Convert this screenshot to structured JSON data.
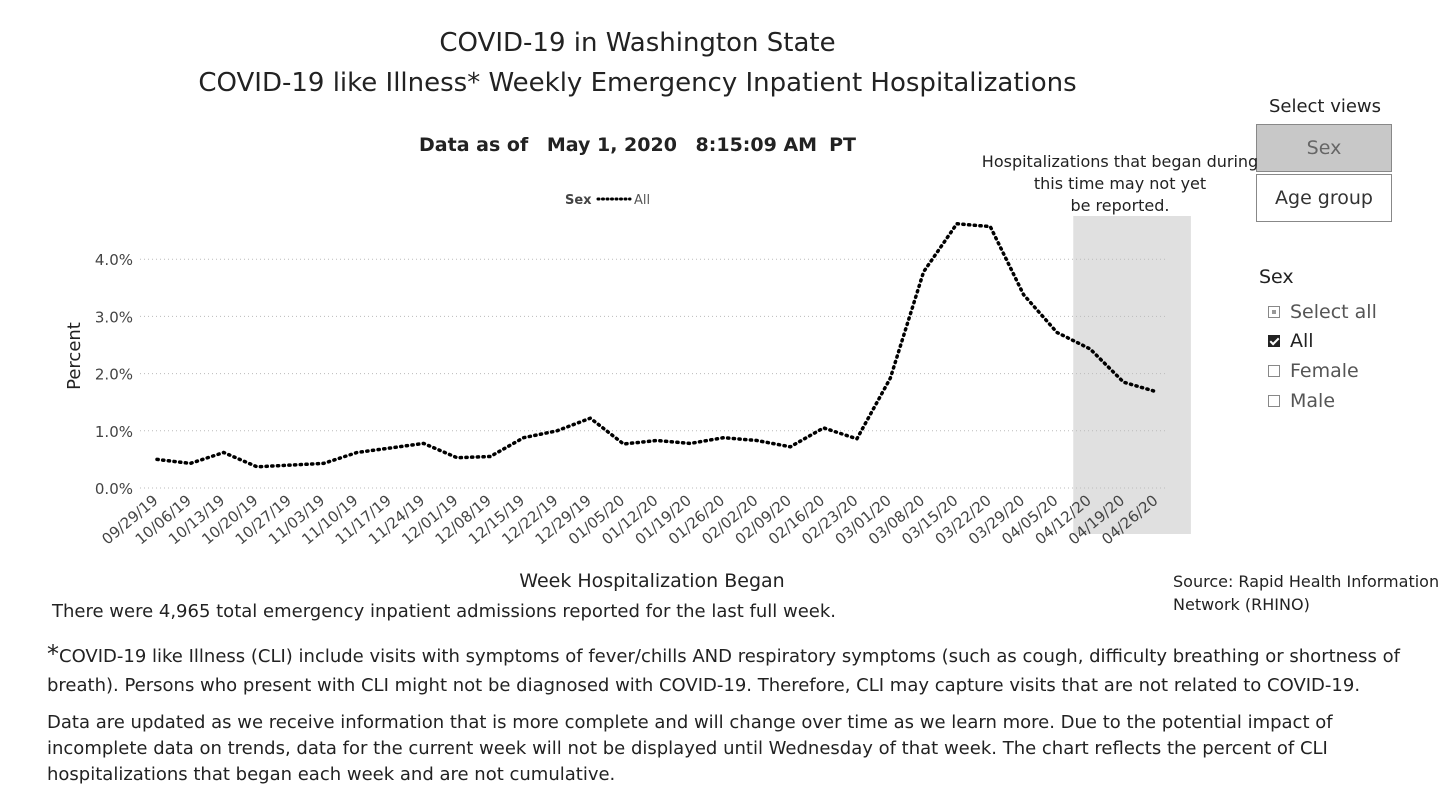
{
  "header": {
    "title_line1": "COVID-19 in Washington State",
    "title_line2": "COVID-19 like Illness* Weekly Emergency Inpatient Hospitalizations",
    "data_as_of_label": "Data as of",
    "data_as_of_date": "May 1, 2020",
    "data_as_of_time": "8:15:09 AM",
    "data_as_of_tz": "PT"
  },
  "views": {
    "title": "Select views",
    "buttons": [
      {
        "label": "Sex",
        "selected": true
      },
      {
        "label": "Age group",
        "selected": false
      }
    ]
  },
  "slicer": {
    "title": "Sex",
    "items": [
      {
        "label": "Select all",
        "state": "partial"
      },
      {
        "label": "All",
        "state": "checked"
      },
      {
        "label": "Female",
        "state": "unchecked"
      },
      {
        "label": "Male",
        "state": "unchecked"
      }
    ]
  },
  "chart_data": {
    "type": "line",
    "xlabel": "Week Hospitalization Began",
    "ylabel": "Percent",
    "ylim": [
      0,
      4.8
    ],
    "yticks": [
      0,
      1,
      2,
      3,
      4
    ],
    "ytick_labels": [
      "0.0%",
      "1.0%",
      "2.0%",
      "3.0%",
      "4.0%"
    ],
    "legend": {
      "title": "Sex",
      "entries": [
        "All"
      ],
      "placement": "top"
    },
    "grid": true,
    "categories": [
      "09/29/19",
      "10/06/19",
      "10/13/19",
      "10/20/19",
      "10/27/19",
      "11/03/19",
      "11/10/19",
      "11/17/19",
      "11/24/19",
      "12/01/19",
      "12/08/19",
      "12/15/19",
      "12/22/19",
      "12/29/19",
      "01/05/20",
      "01/12/20",
      "01/19/20",
      "01/26/20",
      "02/02/20",
      "02/09/20",
      "02/16/20",
      "02/23/20",
      "03/01/20",
      "03/08/20",
      "03/15/20",
      "03/22/20",
      "03/29/20",
      "04/05/20",
      "04/12/20",
      "04/19/20",
      "04/26/20"
    ],
    "series": [
      {
        "name": "All",
        "style": "dotted",
        "color": "#000000",
        "values": [
          0.5,
          0.43,
          0.62,
          0.37,
          0.4,
          0.43,
          0.62,
          0.7,
          0.78,
          0.53,
          0.55,
          0.88,
          1.0,
          1.22,
          0.77,
          0.83,
          0.78,
          0.88,
          0.83,
          0.72,
          1.05,
          0.86,
          1.92,
          3.78,
          4.62,
          4.57,
          3.38,
          2.72,
          2.43,
          1.85,
          1.68
        ]
      }
    ],
    "shaded_region": {
      "from": "04/12/20",
      "to": "04/26/20",
      "color": "#e0e0e0"
    },
    "annotation": "Hospitalizations that began during this time may not yet be reported."
  },
  "footer": {
    "source": "Source: Rapid Health Information Network (RHINO)",
    "total_note": "There were 4,965 total emergency inpatient admissions reported for the last full week.",
    "note_star": "*",
    "note1": "COVID-19 like Illness (CLI) include visits with symptoms of fever/chills AND respiratory symptoms (such as cough, difficulty breathing or shortness of breath). Persons who present with CLI might not be diagnosed with COVID-19. Therefore, CLI may capture visits that are not related to COVID-19.",
    "note2": "Data are updated as we receive information that is more complete and will change over time as we learn more. Due to the potential impact of incomplete data on trends, data for the current week will not be displayed until Wednesday of that week. The chart reflects the percent of CLI hospitalizations that began each week and are not cumulative."
  }
}
